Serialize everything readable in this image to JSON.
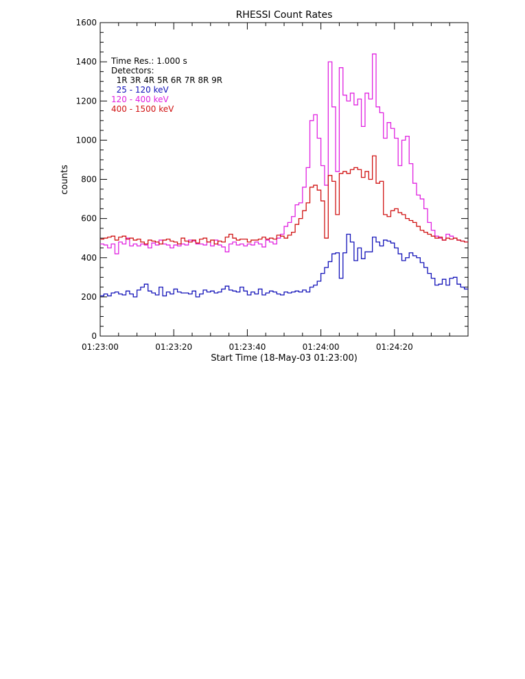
{
  "chart_data": {
    "type": "line",
    "step": true,
    "title": "RHESSI Count Rates",
    "xlabel": "Start Time (18-May-03 01:23:00)",
    "ylabel": "counts",
    "x_unit": "seconds after 01:23:00",
    "xlim": [
      0,
      100
    ],
    "ylim": [
      0,
      1600
    ],
    "x_ticks": [
      {
        "value": 0,
        "label": "01:23:00"
      },
      {
        "value": 20,
        "label": "01:23:20"
      },
      {
        "value": 40,
        "label": "01:23:40"
      },
      {
        "value": 60,
        "label": "01:24:00"
      },
      {
        "value": 80,
        "label": "01:24:20"
      }
    ],
    "y_ticks": [
      {
        "value": 0,
        "label": "0"
      },
      {
        "value": 200,
        "label": "200"
      },
      {
        "value": 400,
        "label": "400"
      },
      {
        "value": 600,
        "label": "600"
      },
      {
        "value": 800,
        "label": "800"
      },
      {
        "value": 1000,
        "label": "1000"
      },
      {
        "value": 1200,
        "label": "1200"
      },
      {
        "value": 1400,
        "label": "1400"
      },
      {
        "value": 1600,
        "label": "1600"
      }
    ],
    "legend": {
      "position": "top-left",
      "lines": [
        "Time Res.: 1.000 s",
        "Detectors:",
        "  1R 3R 4R 5R 6R 7R 8R 9R"
      ]
    },
    "series": [
      {
        "name": "  25 - 120 keV",
        "color": "#1010b8",
        "values": [
          205,
          215,
          205,
          220,
          225,
          215,
          210,
          230,
          215,
          200,
          235,
          250,
          265,
          230,
          220,
          210,
          250,
          205,
          225,
          215,
          240,
          225,
          220,
          220,
          215,
          230,
          200,
          215,
          235,
          225,
          230,
          220,
          225,
          240,
          255,
          235,
          230,
          225,
          250,
          230,
          210,
          225,
          215,
          240,
          210,
          220,
          230,
          225,
          215,
          210,
          225,
          220,
          225,
          230,
          225,
          235,
          225,
          250,
          260,
          280,
          320,
          350,
          380,
          420,
          425,
          295,
          425,
          520,
          480,
          385,
          450,
          395,
          430,
          430,
          505,
          480,
          460,
          490,
          485,
          475,
          450,
          420,
          385,
          400,
          425,
          410,
          400,
          375,
          350,
          320,
          295,
          260,
          265,
          290,
          260,
          295,
          300,
          265,
          250,
          240
        ]
      },
      {
        "name": "120 - 400 keV",
        "color": "#e020e0",
        "values": [
          470,
          465,
          450,
          470,
          420,
          480,
          470,
          500,
          460,
          470,
          460,
          470,
          465,
          450,
          475,
          465,
          490,
          470,
          465,
          450,
          465,
          460,
          470,
          465,
          490,
          485,
          470,
          470,
          465,
          480,
          460,
          490,
          465,
          455,
          430,
          470,
          480,
          465,
          470,
          460,
          470,
          465,
          480,
          470,
          455,
          490,
          480,
          470,
          500,
          520,
          560,
          580,
          610,
          670,
          680,
          760,
          860,
          1100,
          1130,
          1010,
          870,
          770,
          1400,
          1170,
          840,
          1370,
          1230,
          1200,
          1240,
          1180,
          1210,
          1070,
          1240,
          1210,
          1440,
          1170,
          1140,
          1010,
          1090,
          1060,
          1010,
          870,
          1000,
          1020,
          880,
          780,
          720,
          700,
          650,
          580,
          540,
          510,
          500,
          490,
          520,
          510,
          500,
          490,
          485,
          480
        ]
      },
      {
        "name": "400 - 1500 keV",
        "color": "#d01010",
        "values": [
          495,
          500,
          505,
          510,
          490,
          505,
          510,
          495,
          500,
          490,
          495,
          480,
          470,
          490,
          485,
          480,
          470,
          490,
          495,
          485,
          480,
          470,
          500,
          485,
          480,
          490,
          475,
          495,
          500,
          480,
          490,
          470,
          485,
          480,
          505,
          520,
          500,
          490,
          495,
          495,
          480,
          490,
          490,
          495,
          505,
          495,
          500,
          495,
          515,
          510,
          500,
          515,
          530,
          570,
          600,
          640,
          680,
          760,
          770,
          745,
          690,
          500,
          820,
          790,
          620,
          830,
          840,
          830,
          850,
          860,
          850,
          810,
          840,
          800,
          920,
          780,
          790,
          620,
          610,
          640,
          650,
          630,
          620,
          600,
          590,
          580,
          560,
          540,
          530,
          520,
          510,
          500,
          505,
          490,
          500,
          495,
          500,
          490,
          485,
          480
        ]
      }
    ]
  }
}
